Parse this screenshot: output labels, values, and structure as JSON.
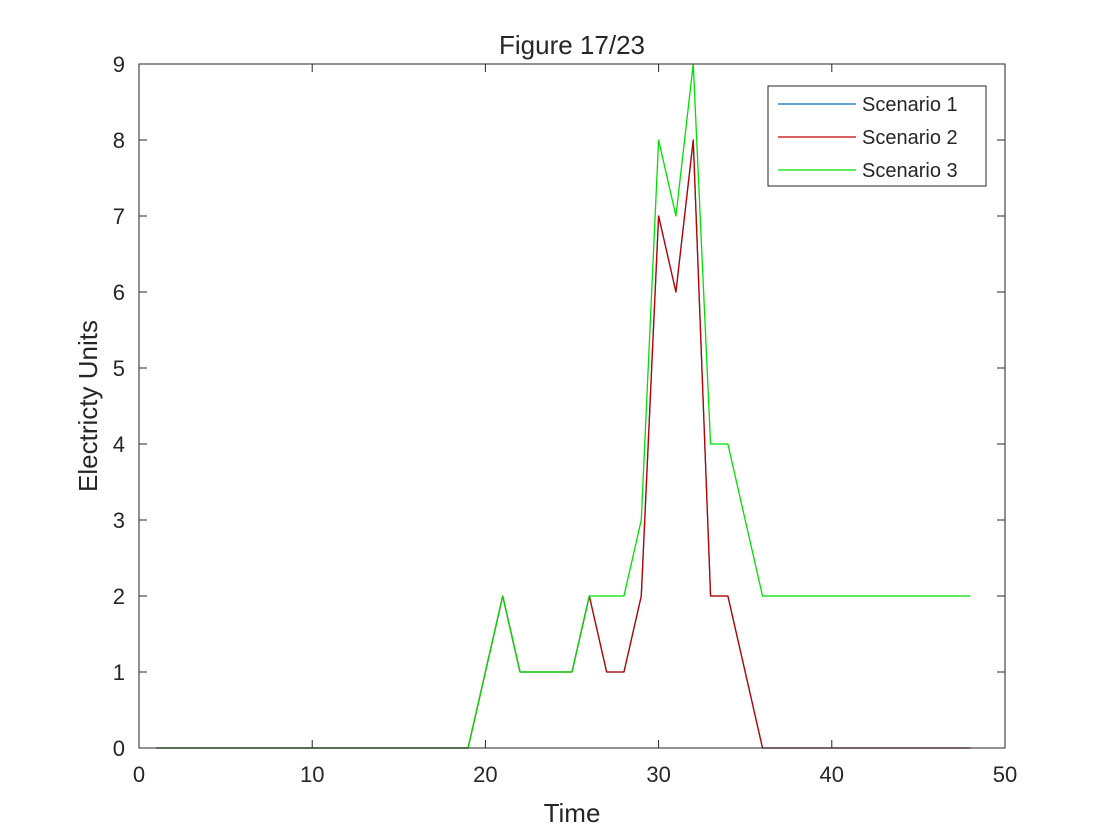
{
  "chart_data": {
    "type": "line",
    "title": "Figure 17/23",
    "xlabel": "Time",
    "ylabel": "Electricty Units",
    "xlim": [
      0,
      50
    ],
    "ylim": [
      0,
      9
    ],
    "xticks": [
      0,
      10,
      20,
      30,
      40,
      50
    ],
    "yticks": [
      0,
      1,
      2,
      3,
      4,
      5,
      6,
      7,
      8,
      9
    ],
    "grid": false,
    "legend_position": "top-right",
    "x": [
      1,
      2,
      3,
      4,
      5,
      6,
      7,
      8,
      9,
      10,
      11,
      12,
      13,
      14,
      15,
      16,
      17,
      18,
      19,
      20,
      21,
      22,
      23,
      24,
      25,
      26,
      27,
      28,
      29,
      30,
      31,
      32,
      33,
      34,
      35,
      36,
      37,
      38,
      39,
      40,
      41,
      42,
      43,
      44,
      45,
      46,
      47,
      48
    ],
    "series": [
      {
        "name": "Scenario 1",
        "color": "#0072bd",
        "values": [
          0,
          0,
          0,
          0,
          0,
          0,
          0,
          0,
          0,
          0,
          0,
          0,
          0,
          0,
          0,
          0,
          0,
          0,
          0,
          1,
          2,
          1,
          1,
          1,
          1,
          2,
          1,
          1,
          2,
          7,
          6,
          8,
          2,
          2,
          1,
          0,
          0,
          0,
          0,
          0,
          0,
          0,
          0,
          0,
          0,
          0,
          0,
          0
        ]
      },
      {
        "name": "Scenario 2",
        "color": "#c00000",
        "values": [
          0,
          0,
          0,
          0,
          0,
          0,
          0,
          0,
          0,
          0,
          0,
          0,
          0,
          0,
          0,
          0,
          0,
          0,
          0,
          1,
          2,
          1,
          1,
          1,
          1,
          2,
          1,
          1,
          2,
          7,
          6,
          8,
          2,
          2,
          1,
          0,
          0,
          0,
          0,
          0,
          0,
          0,
          0,
          0,
          0,
          0,
          0,
          0
        ]
      },
      {
        "name": "Scenario 3",
        "color": "#00e000",
        "values": [
          0,
          0,
          0,
          0,
          0,
          0,
          0,
          0,
          0,
          0,
          0,
          0,
          0,
          0,
          0,
          0,
          0,
          0,
          0,
          1,
          2,
          1,
          1,
          1,
          1,
          2,
          2,
          2,
          3,
          8,
          7,
          9,
          4,
          4,
          3,
          2,
          2,
          2,
          2,
          2,
          2,
          2,
          2,
          2,
          2,
          2,
          2,
          2
        ]
      }
    ]
  }
}
